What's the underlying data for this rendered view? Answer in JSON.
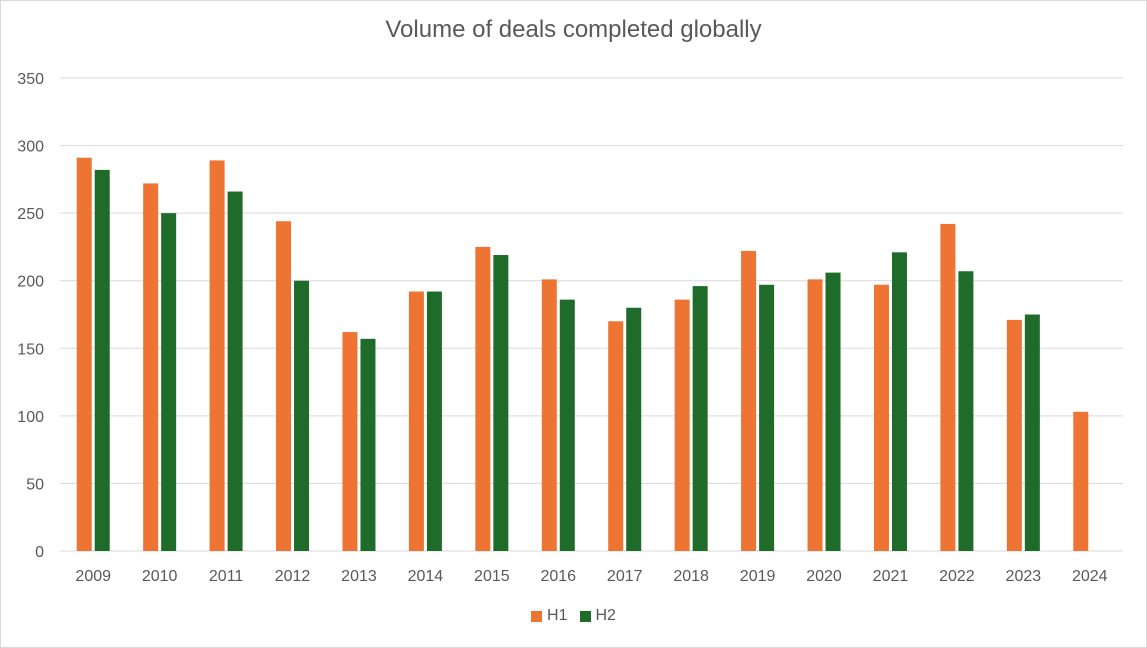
{
  "chart_data": {
    "type": "bar",
    "title": "Volume of deals completed globally",
    "xlabel": "",
    "ylabel": "",
    "ylim": [
      0,
      350
    ],
    "yticks": [
      0,
      50,
      100,
      150,
      200,
      250,
      300,
      350
    ],
    "grid": true,
    "legend_position": "bottom",
    "categories": [
      "2009",
      "2010",
      "2011",
      "2012",
      "2013",
      "2014",
      "2015",
      "2016",
      "2017",
      "2018",
      "2019",
      "2020",
      "2021",
      "2022",
      "2023",
      "2024"
    ],
    "series": [
      {
        "name": "H1",
        "color": "#ED7433",
        "values": [
          291,
          272,
          289,
          244,
          162,
          192,
          225,
          201,
          170,
          186,
          222,
          201,
          197,
          242,
          171,
          103
        ]
      },
      {
        "name": "H2",
        "color": "#1E6B2A",
        "values": [
          282,
          250,
          266,
          200,
          157,
          192,
          219,
          186,
          180,
          196,
          197,
          206,
          221,
          207,
          175,
          null
        ]
      }
    ]
  }
}
